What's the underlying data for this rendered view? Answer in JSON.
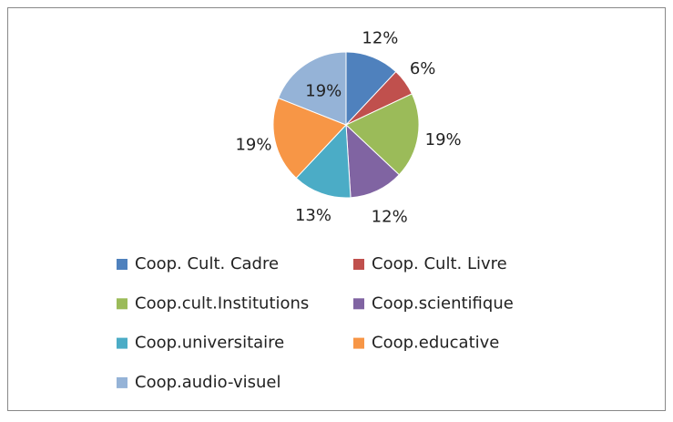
{
  "chart_data": {
    "type": "pie",
    "categories": [
      "Coop. Cult. Cadre",
      "Coop. Cult. Livre",
      "Coop.cult.Institutions",
      "Coop.scientifique",
      "Coop.universitaire",
      "Coop.educative",
      "Coop.audio-visuel"
    ],
    "values": [
      12,
      6,
      19,
      12,
      13,
      19,
      19
    ],
    "value_labels": [
      "12%",
      "6%",
      "19%",
      "12%",
      "13%",
      "19%",
      "19%"
    ],
    "colors": [
      "#4f81bd",
      "#c0504d",
      "#9bbb59",
      "#8064a2",
      "#4bacc6",
      "#f79646",
      "#95b3d7"
    ],
    "legend": "bottom"
  }
}
